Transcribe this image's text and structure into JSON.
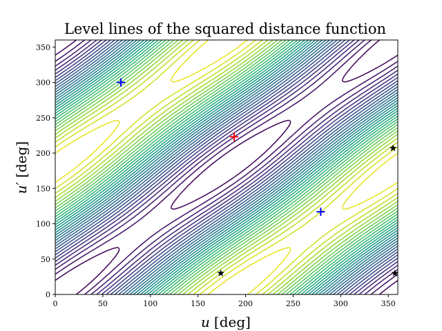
{
  "chart_data": {
    "type": "contour",
    "title": "Level lines of the squared distance function",
    "xlabel_var": "u",
    "xlabel_unit": "[deg]",
    "ylabel_var": "u′",
    "ylabel_unit": "[deg]",
    "xlim": [
      0,
      360
    ],
    "ylim": [
      0,
      360
    ],
    "xticks": [
      0,
      50,
      100,
      150,
      200,
      250,
      300,
      350
    ],
    "yticks": [
      0,
      50,
      100,
      150,
      200,
      250,
      300,
      350
    ],
    "colormap": "viridis",
    "contour_levels": 30,
    "markers": [
      {
        "kind": "plus",
        "color": "#ff0000",
        "u": 188,
        "u_prime": 223
      },
      {
        "kind": "plus",
        "color": "#0000ff",
        "u": 69,
        "u_prime": 300
      },
      {
        "kind": "plus",
        "color": "#0000ff",
        "u": 279,
        "u_prime": 117
      },
      {
        "kind": "star",
        "color": "#000000",
        "u": 355,
        "u_prime": 207
      },
      {
        "kind": "star",
        "color": "#000000",
        "u": 174,
        "u_prime": 30
      },
      {
        "kind": "star",
        "color": "#000000",
        "u": 357,
        "u_prime": 30
      }
    ]
  }
}
